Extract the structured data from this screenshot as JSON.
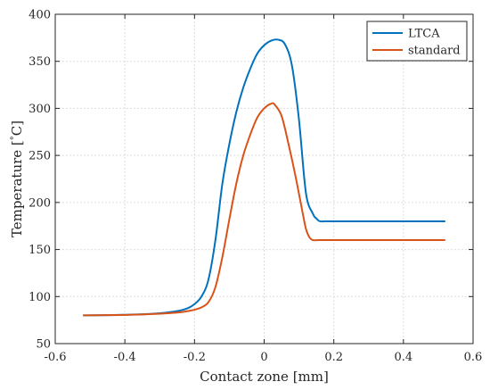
{
  "chart_data": {
    "type": "line",
    "xlabel": "Contact zone [mm]",
    "ylabel_text": "Temperature [",
    "ylabel_superscript": "°",
    "ylabel_unit": "C]",
    "xlim": [
      -0.6,
      0.6
    ],
    "ylim": [
      50,
      400
    ],
    "x_ticks": [
      -0.6,
      -0.4,
      -0.2,
      0,
      0.2,
      0.4,
      0.6
    ],
    "x_tick_labels": [
      "-0.6",
      "-0.4",
      "-0.2",
      "0",
      "0.2",
      "0.4",
      "0.6"
    ],
    "y_ticks": [
      50,
      100,
      150,
      200,
      250,
      300,
      350,
      400
    ],
    "y_tick_labels": [
      "50",
      "100",
      "150",
      "200",
      "250",
      "300",
      "350",
      "400"
    ],
    "grid": true,
    "legend_position": "top-right",
    "series": [
      {
        "name": "LTCA",
        "color": "#0072BD",
        "x": [
          -0.52,
          -0.45,
          -0.4,
          -0.35,
          -0.3,
          -0.25,
          -0.22,
          -0.2,
          -0.18,
          -0.16,
          -0.14,
          -0.12,
          -0.1,
          -0.08,
          -0.06,
          -0.04,
          -0.02,
          0.0,
          0.02,
          0.04,
          0.06,
          0.08,
          0.1,
          0.12,
          0.14,
          0.15,
          0.16,
          0.18,
          0.2,
          0.3,
          0.4,
          0.52
        ],
        "y": [
          80,
          80.2,
          80.6,
          81.2,
          82.2,
          84.5,
          87.5,
          92,
          100,
          118,
          160,
          220,
          262,
          296,
          322,
          342,
          358,
          367,
          372,
          373,
          368,
          345,
          288,
          210,
          188,
          183,
          180,
          180,
          180,
          180,
          180,
          180
        ]
      },
      {
        "name": "standard",
        "color": "#D95319",
        "x": [
          -0.52,
          -0.45,
          -0.4,
          -0.35,
          -0.3,
          -0.25,
          -0.22,
          -0.2,
          -0.18,
          -0.16,
          -0.14,
          -0.12,
          -0.1,
          -0.08,
          -0.06,
          -0.04,
          -0.02,
          0.0,
          0.02,
          0.03,
          0.05,
          0.07,
          0.09,
          0.11,
          0.12,
          0.13,
          0.14,
          0.16,
          0.2,
          0.3,
          0.4,
          0.52
        ],
        "y": [
          80,
          80.2,
          80.5,
          81,
          81.8,
          83,
          84.5,
          86,
          88.5,
          94,
          110,
          142,
          182,
          220,
          250,
          272,
          290,
          300,
          305,
          304,
          292,
          262,
          228,
          190,
          172,
          163,
          160,
          160,
          160,
          160,
          160,
          160
        ]
      }
    ]
  }
}
